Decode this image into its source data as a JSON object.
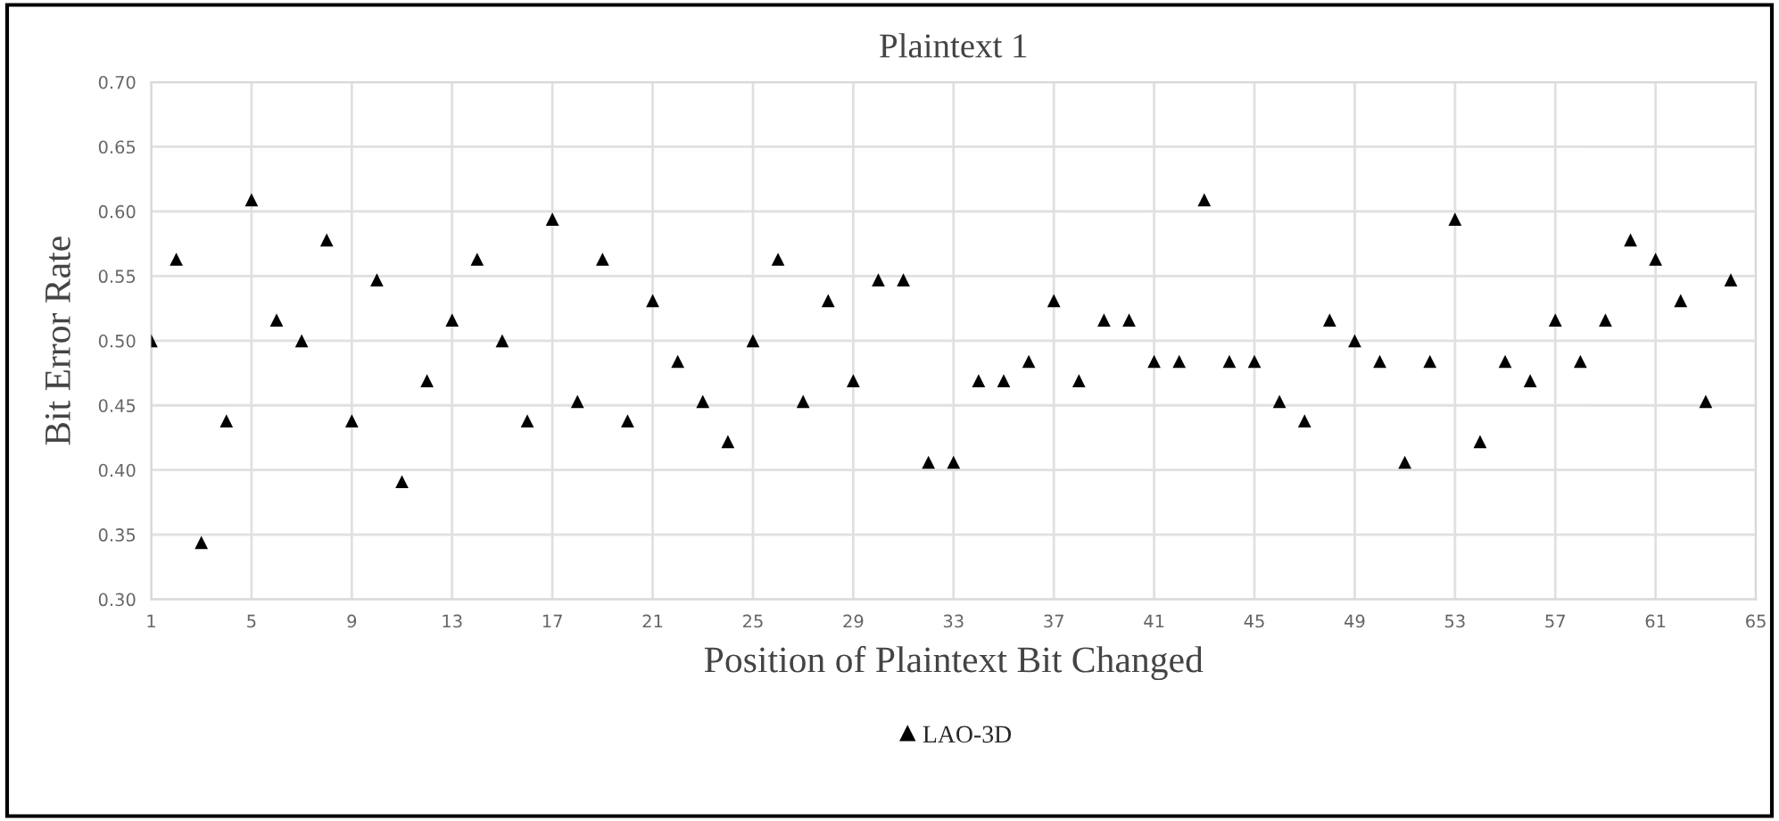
{
  "chart_data": {
    "type": "scatter",
    "title": "Plaintext 1",
    "xlabel": "Position of Plaintext Bit Changed",
    "ylabel": "Bit Error Rate",
    "x": [
      1,
      2,
      3,
      4,
      5,
      6,
      7,
      8,
      9,
      10,
      11,
      12,
      13,
      14,
      15,
      16,
      17,
      18,
      19,
      20,
      21,
      22,
      23,
      24,
      25,
      26,
      27,
      28,
      29,
      30,
      31,
      32,
      33,
      34,
      35,
      36,
      37,
      38,
      39,
      40,
      41,
      42,
      43,
      44,
      45,
      46,
      47,
      48,
      49,
      50,
      51,
      52,
      53,
      54,
      55,
      56,
      57,
      58,
      59,
      60,
      61,
      62,
      63,
      64
    ],
    "series": [
      {
        "name": "LAO-3D",
        "color": "#000000",
        "values": [
          0.5,
          0.563,
          0.344,
          0.438,
          0.609,
          0.516,
          0.5,
          0.578,
          0.438,
          0.547,
          0.391,
          0.469,
          0.516,
          0.563,
          0.5,
          0.438,
          0.594,
          0.453,
          0.563,
          0.438,
          0.531,
          0.484,
          0.453,
          0.422,
          0.5,
          0.563,
          0.453,
          0.531,
          0.469,
          0.547,
          0.547,
          0.406,
          0.406,
          0.469,
          0.469,
          0.484,
          0.531,
          0.469,
          0.516,
          0.516,
          0.484,
          0.484,
          0.609,
          0.484,
          0.484,
          0.453,
          0.438,
          0.516,
          0.5,
          0.484,
          0.406,
          0.484,
          0.594,
          0.422,
          0.484,
          0.469,
          0.516,
          0.484,
          0.516,
          0.578,
          0.563,
          0.531,
          0.453,
          0.547
        ]
      }
    ],
    "xlim": [
      1,
      65
    ],
    "xticks": [
      1,
      5,
      9,
      13,
      17,
      21,
      25,
      29,
      33,
      37,
      41,
      45,
      49,
      53,
      57,
      61,
      65
    ],
    "ylim": [
      0.3,
      0.7
    ],
    "yticks": [
      {
        "value": 0.3,
        "label": "0.30"
      },
      {
        "value": 0.35,
        "label": "0.35"
      },
      {
        "value": 0.4,
        "label": "0.40"
      },
      {
        "value": 0.45,
        "label": "0.45"
      },
      {
        "value": 0.5,
        "label": "0.50"
      },
      {
        "value": 0.55,
        "label": "0.55"
      },
      {
        "value": 0.6,
        "label": "0.60"
      },
      {
        "value": 0.65,
        "label": "0.65"
      },
      {
        "value": 0.7,
        "label": "0.70"
      }
    ],
    "grid": true,
    "legend": "bottom",
    "marker": "triangle"
  }
}
